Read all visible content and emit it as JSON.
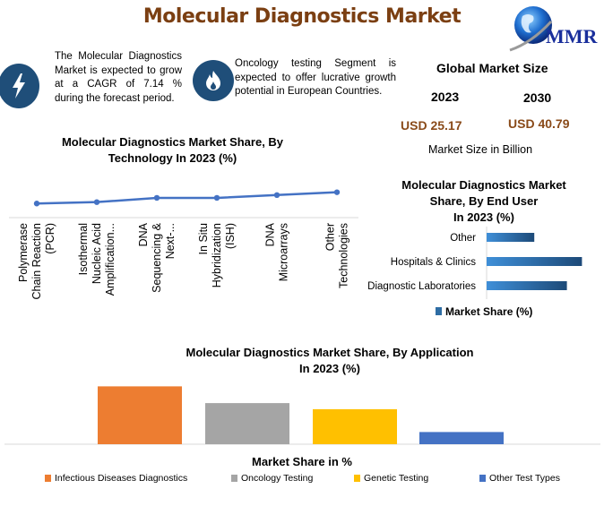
{
  "header": {
    "title": "Molecular Diagnostics Market",
    "logo_text": "MMR",
    "logo_icon": "globe-icon"
  },
  "info_cards": [
    {
      "icon": "lightning-bolt-icon",
      "text": "The Molecular Diagnostics Market is expected to grow at a CAGR of 7.14 % during the forecast period."
    },
    {
      "icon": "flame-icon",
      "text": "Oncology testing Segment is expected to offer lucrative growth potential in European Countries."
    }
  ],
  "global_market_size": {
    "title": "Global Market Size",
    "years": [
      "2023",
      "2030"
    ],
    "values": [
      "USD 25.17",
      "USD 40.79"
    ],
    "unit_label": "Market Size in Billion"
  },
  "colors": {
    "title_brown": "#7b3f12",
    "value_brown": "#8a4b1a",
    "icon_navy": "#1f4e79",
    "line_blue": "#4472c4",
    "orange": "#ed7d31",
    "gray": "#a5a5a5",
    "gold": "#ffc000",
    "blue": "#4472c4"
  },
  "chart_data": [
    {
      "type": "line",
      "title": "Molecular Diagnostics Market Share, By Technology In 2023 (%)",
      "title_lines": [
        "Molecular Diagnostics Market Share, By",
        "Technology In 2023 (%)"
      ],
      "categories": [
        [
          "Polymerase",
          "Chain Reaction",
          "(PCR)"
        ],
        [
          "Isothermal",
          "Nucleic Acid",
          "Amplification..."
        ],
        [
          "DNA",
          "Sequencing &",
          "Next-..."
        ],
        [
          "In Situ",
          "Hybridization",
          "(ISH)"
        ],
        [
          "DNA",
          "Microarrays"
        ],
        [
          "Other",
          "Technologies"
        ]
      ],
      "values": [
        10,
        11,
        14,
        14,
        16,
        18
      ],
      "ylim": [
        0,
        40
      ],
      "grid": false,
      "xlabel": "",
      "ylabel": ""
    },
    {
      "type": "bar",
      "orientation": "horizontal",
      "title": "Molecular Diagnostics Market Share, By End User In 2023 (%)",
      "title_lines": [
        "Molecular Diagnostics Market",
        "Share, By End User",
        "In 2023 (%)"
      ],
      "categories": [
        "Other",
        "Hospitals & Clinics",
        "Diagnostic Laboratories"
      ],
      "values": [
        19,
        38,
        32
      ],
      "xlim": [
        0,
        40
      ],
      "legend": [
        "Market Share (%)"
      ],
      "legend_position": "bottom"
    },
    {
      "type": "bar",
      "title": "Molecular Diagnostics Market Share, By Application In 2023 (%)",
      "title_lines": [
        "Molecular Diagnostics Market Share, By Application",
        "In 2023 (%)"
      ],
      "xlabel": "Market Share in %",
      "categories": [
        "Infectious Diseases Diagnostics",
        "Oncology Testing",
        "Genetic Testing",
        "Other Test Types"
      ],
      "values": [
        38,
        27,
        23,
        8
      ],
      "ylim": [
        0,
        40
      ],
      "legend_position": "bottom"
    }
  ]
}
